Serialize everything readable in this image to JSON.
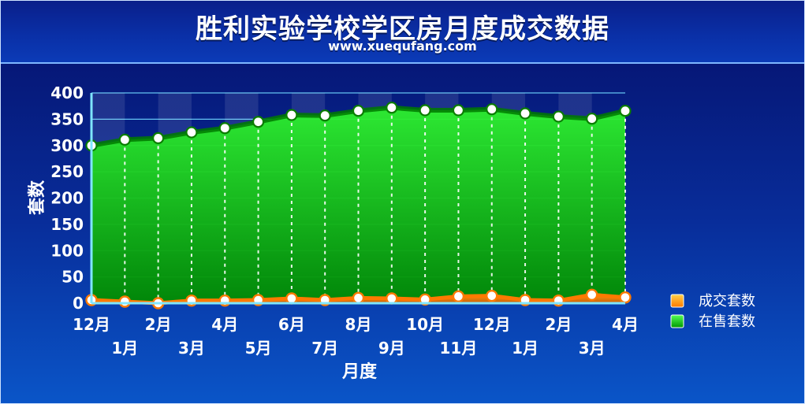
{
  "header": {
    "title": "胜利实验学校学区房月度成交数据",
    "subtitle": "www.xuequfang.com"
  },
  "chart_data": {
    "type": "area",
    "title": "胜利实验学校学区房月度成交数据",
    "subtitle": "www.xuequfang.com",
    "xlabel": "月度",
    "ylabel": "套数",
    "ylim": [
      0,
      400
    ],
    "yticks": [
      0,
      50,
      100,
      150,
      200,
      250,
      300,
      350,
      400
    ],
    "categories": [
      "12月",
      "1月",
      "2月",
      "3月",
      "4月",
      "5月",
      "6月",
      "7月",
      "8月",
      "9月",
      "10月",
      "11月",
      "12月",
      "1月",
      "2月",
      "3月",
      "4月"
    ],
    "series": [
      {
        "name": "成交套数",
        "values": [
          6,
          3,
          0,
          5,
          5,
          6,
          9,
          6,
          10,
          9,
          7,
          13,
          14,
          6,
          5,
          16,
          11
        ]
      },
      {
        "name": "在售套数",
        "values": [
          300,
          311,
          314,
          325,
          333,
          345,
          358,
          357,
          366,
          372,
          367,
          367,
          369,
          361,
          355,
          351,
          366
        ]
      }
    ],
    "legend": "right",
    "colors": {
      "sold": "#ff8a00",
      "listing": "#00c800",
      "grid": "#6fd6ff"
    }
  }
}
